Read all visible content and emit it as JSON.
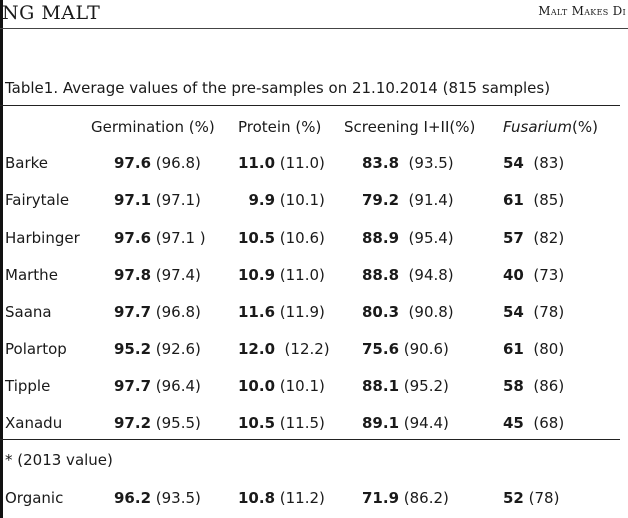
{
  "header": {
    "logo_text": "NG MALT",
    "tagline": "Malt Makes Di"
  },
  "table": {
    "caption": "Table1. Average values of the pre-samples on 21.10.2014 (815 samples)",
    "columns": [
      {
        "label": "Germination (%)"
      },
      {
        "label": "Protein (%)"
      },
      {
        "label": "Screening I+II(%)"
      },
      {
        "italic": "Fusarium",
        "suffix": "(%)"
      }
    ],
    "rows": [
      {
        "name": "Barke",
        "germ": [
          "97.6",
          " (96.8)"
        ],
        "prot": [
          "11.0",
          " (11.0)"
        ],
        "scr": [
          "83.8",
          "  (93.5)"
        ],
        "fus": [
          "54",
          "  (83)"
        ]
      },
      {
        "name": "Fairytale",
        "germ": [
          "97.1",
          " (97.1)"
        ],
        "prot": [
          "  9.9",
          " (10.1)"
        ],
        "scr": [
          "79.2",
          "  (91.4)"
        ],
        "fus": [
          "61",
          "  (85)"
        ]
      },
      {
        "name": "Harbinger",
        "germ": [
          "97.6",
          " (97.1 )"
        ],
        "prot": [
          "10.5",
          " (10.6)"
        ],
        "scr": [
          "88.9",
          "  (95.4)"
        ],
        "fus": [
          "57",
          "  (82)"
        ]
      },
      {
        "name": "Marthe",
        "germ": [
          "97.8",
          " (97.4)"
        ],
        "prot": [
          "10.9",
          " (11.0)"
        ],
        "scr": [
          "88.8",
          "  (94.8)"
        ],
        "fus": [
          "40",
          "  (73)"
        ]
      },
      {
        "name": "Saana",
        "germ": [
          "97.7",
          " (96.8)"
        ],
        "prot": [
          "11.6",
          " (11.9)"
        ],
        "scr": [
          "80.3",
          "  (90.8)"
        ],
        "fus": [
          "54",
          "  (78)"
        ]
      },
      {
        "name": "Polartop",
        "germ": [
          "95.2",
          " (92.6)"
        ],
        "prot": [
          "12.0",
          "  (12.2)"
        ],
        "scr": [
          "75.6",
          " (90.6)"
        ],
        "fus": [
          "61",
          "  (80)"
        ]
      },
      {
        "name": "Tipple",
        "germ": [
          "97.7",
          " (96.4)"
        ],
        "prot": [
          "10.0",
          " (10.1)"
        ],
        "scr": [
          "88.1",
          " (95.2)"
        ],
        "fus": [
          "58",
          "  (86)"
        ]
      },
      {
        "name": "Xanadu",
        "germ": [
          "97.2",
          " (95.5)"
        ],
        "prot": [
          "10.5",
          " (11.5)"
        ],
        "scr": [
          "89.1",
          " (94.4)"
        ],
        "fus": [
          "45",
          "  (68)"
        ]
      }
    ],
    "footnote": "* (2013 value)",
    "organic": {
      "name": "Organic",
      "germ": [
        "96.2",
        " (93.5)"
      ],
      "prot": [
        "10.8",
        " (11.2)"
      ],
      "scr": [
        "71.9",
        " (86.2)"
      ],
      "fus": [
        "52",
        " (78)"
      ]
    }
  }
}
